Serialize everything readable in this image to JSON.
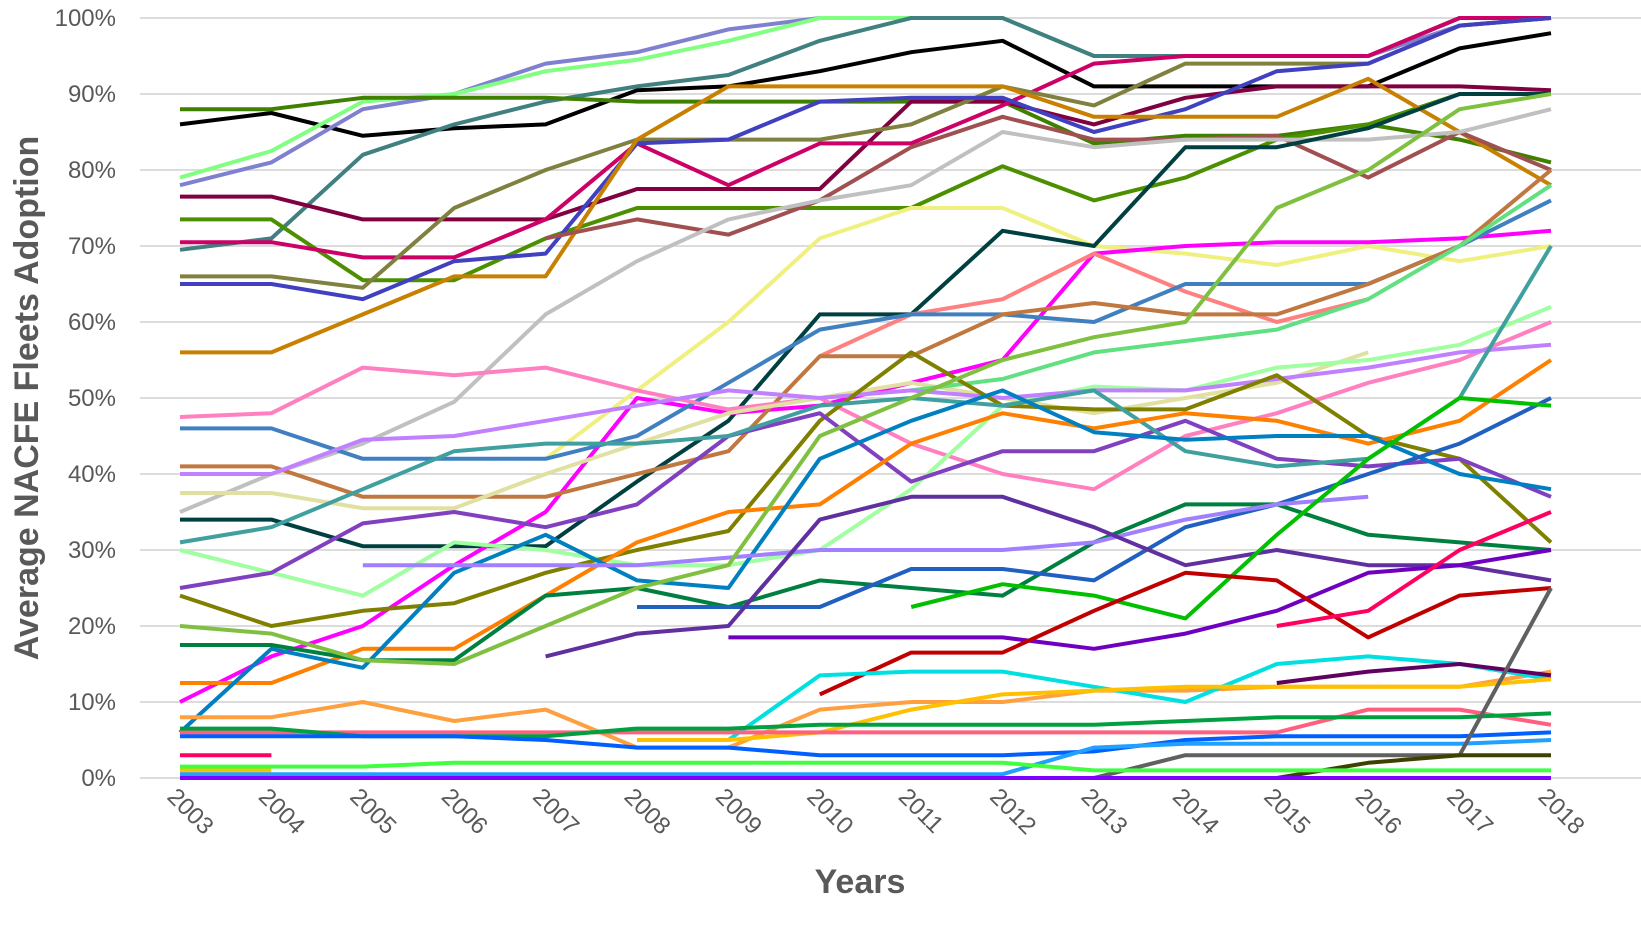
{
  "chart_data": {
    "type": "line",
    "title": "",
    "xlabel": "Years",
    "ylabel": "Average NACFE Fleets Adoption",
    "x": [
      "2003",
      "2004",
      "2005",
      "2006",
      "2007",
      "2008",
      "2009",
      "2010",
      "2011",
      "2012",
      "2013",
      "2014",
      "2015",
      "2016",
      "2017",
      "2018"
    ],
    "ylim": [
      0,
      100
    ],
    "y_ticks": [
      "0%",
      "10%",
      "20%",
      "30%",
      "40%",
      "50%",
      "60%",
      "70%",
      "80%",
      "90%",
      "100%"
    ],
    "grid": true,
    "legend": "none",
    "series": [
      {
        "color": "#000000",
        "values": [
          86,
          87.5,
          84.5,
          85.5,
          86,
          90.5,
          91,
          93,
          95.5,
          97,
          91,
          91,
          91,
          91,
          96,
          98
        ]
      },
      {
        "color": "#8080d0",
        "values": [
          78,
          81,
          88,
          90,
          94,
          95.5,
          98.5,
          100,
          100,
          100,
          95,
          95,
          95,
          95,
          99,
          100
        ]
      },
      {
        "color": "#80ff80",
        "values": [
          79,
          82.5,
          89,
          90,
          93,
          94.5,
          97,
          100,
          100,
          100,
          95,
          95,
          95,
          95,
          100,
          100
        ]
      },
      {
        "color": "#408080",
        "values": [
          69.5,
          71,
          82,
          86,
          89,
          91,
          92.5,
          97,
          100,
          100,
          95,
          95,
          95,
          95,
          100,
          100
        ]
      },
      {
        "color": "#408000",
        "values": [
          88,
          88,
          89.5,
          89.5,
          89.5,
          89,
          89,
          89,
          89,
          89,
          83.5,
          84.5,
          84.5,
          86,
          84,
          81
        ]
      },
      {
        "color": "#800040",
        "values": [
          76.5,
          76.5,
          73.5,
          73.5,
          73.5,
          77.5,
          77.5,
          77.5,
          89,
          89,
          86,
          89.5,
          91,
          91,
          91,
          90.5
        ]
      },
      {
        "color": "#4c9000",
        "values": [
          73.5,
          73.5,
          65.5,
          65.5,
          71,
          75,
          75,
          75,
          75,
          80.5,
          76,
          79,
          84,
          86,
          90,
          90
        ]
      },
      {
        "color": "#cc0066",
        "values": [
          70.5,
          70.5,
          68.5,
          68.5,
          73.5,
          83.5,
          78,
          83.5,
          83.5,
          88.5,
          94,
          95,
          95,
          95,
          100,
          100
        ]
      },
      {
        "color": "#808040",
        "values": [
          66,
          66,
          64.5,
          75,
          80,
          84,
          84,
          84,
          86,
          91,
          88.5,
          94,
          94,
          94,
          99,
          100
        ]
      },
      {
        "color": "#4040c0",
        "values": [
          65,
          65,
          63,
          68,
          69,
          83.5,
          84,
          89,
          89.5,
          89.5,
          85,
          88,
          93,
          94,
          99,
          100
        ]
      },
      {
        "color": "#c88000",
        "values": [
          56,
          56,
          61,
          66,
          66,
          84,
          91,
          91,
          91,
          91,
          87,
          87,
          87,
          92,
          85,
          78
        ]
      },
      {
        "color": "#a05050",
        "values": [
          null,
          null,
          null,
          null,
          71,
          73.5,
          71.5,
          76,
          83,
          87,
          84,
          84,
          84.5,
          79,
          85,
          80
        ]
      },
      {
        "color": "#c0c0c0",
        "values": [
          35,
          40,
          44,
          49.5,
          61,
          68,
          73.5,
          76,
          78,
          85,
          83,
          84,
          84,
          84,
          85,
          88
        ]
      },
      {
        "color": "#f0f080",
        "values": [
          13,
          null,
          null,
          null,
          42,
          51,
          60,
          71,
          75,
          75,
          70,
          69,
          67.5,
          70,
          68,
          70
        ]
      },
      {
        "color": "#004040",
        "values": [
          34,
          34,
          30.5,
          30.5,
          30.5,
          39,
          47,
          61,
          61,
          72,
          70,
          83,
          83,
          85.5,
          90,
          90
        ]
      },
      {
        "color": "#ff00ff",
        "values": [
          10,
          16,
          20,
          28,
          35,
          50,
          48,
          49,
          52,
          55,
          69,
          70,
          70.5,
          70.5,
          71,
          72
        ]
      },
      {
        "color": "#ff8080",
        "values": [
          null,
          null,
          null,
          null,
          null,
          null,
          null,
          55.5,
          61,
          63,
          69,
          64,
          60,
          63,
          null,
          null
        ]
      },
      {
        "color": "#4080c0",
        "values": [
          46,
          46,
          42,
          42,
          42,
          45,
          52,
          59,
          61,
          61,
          60,
          65,
          65,
          65,
          70,
          76
        ]
      },
      {
        "color": "#c07840",
        "values": [
          41,
          41,
          37,
          37,
          37,
          40,
          43,
          55.5,
          55.5,
          61,
          62.5,
          61,
          61,
          65,
          70,
          80
        ]
      },
      {
        "color": "#ff80c0",
        "values": [
          47.5,
          48,
          54,
          53,
          54,
          51,
          48.5,
          50,
          44,
          40,
          38,
          45,
          48,
          52,
          55,
          60
        ]
      },
      {
        "color": "#e0e0a0",
        "values": [
          37.5,
          37.5,
          35.5,
          35.5,
          40,
          44,
          48,
          50,
          52,
          50,
          48,
          50,
          52,
          56,
          null,
          null
        ]
      },
      {
        "color": "#a0ffa0",
        "values": [
          30,
          27,
          24,
          31,
          30,
          28,
          28,
          30,
          38,
          49,
          51.5,
          51,
          54,
          55,
          57,
          62
        ]
      },
      {
        "color": "#60e080",
        "values": [
          null,
          null,
          null,
          null,
          null,
          null,
          null,
          null,
          51,
          52.5,
          56,
          57.5,
          59,
          63,
          70,
          78
        ]
      },
      {
        "color": "#c080ff",
        "values": [
          40,
          40,
          44.5,
          45,
          47,
          49,
          51,
          50,
          51,
          50,
          51,
          51,
          52.5,
          54,
          56,
          57
        ]
      },
      {
        "color": "#808000",
        "values": [
          24,
          20,
          22,
          23,
          27,
          30,
          32.5,
          47,
          56,
          49,
          48.5,
          48.5,
          53,
          45,
          42,
          31
        ]
      },
      {
        "color": "#8040c0",
        "values": [
          25,
          27,
          33.5,
          35,
          33,
          36,
          45,
          48,
          39,
          43,
          43,
          47,
          42,
          41,
          42,
          37
        ]
      },
      {
        "color": "#40a0a0",
        "values": [
          31,
          33,
          38,
          43,
          44,
          44,
          45,
          49,
          50,
          49,
          51,
          43,
          41,
          42,
          50,
          70
        ]
      },
      {
        "color": "#ff8000",
        "values": [
          12.5,
          12.5,
          17,
          17,
          24,
          31,
          35,
          36,
          44,
          48,
          46,
          48,
          47,
          44,
          47,
          55
        ]
      },
      {
        "color": "#0080c0",
        "values": [
          6,
          17,
          14.5,
          27,
          32,
          26,
          25,
          42,
          47,
          51,
          45.5,
          44.5,
          45,
          45,
          40,
          38
        ]
      },
      {
        "color": "#008040",
        "values": [
          17.5,
          17.5,
          15.5,
          15.5,
          24,
          25,
          22.5,
          26,
          25,
          24,
          31,
          36,
          36,
          32,
          31,
          30
        ]
      },
      {
        "color": "#2060c0",
        "values": [
          null,
          null,
          null,
          null,
          null,
          22.5,
          22.5,
          22.5,
          27.5,
          27.5,
          26,
          33,
          36,
          40,
          44,
          50
        ]
      },
      {
        "color": "#a080ff",
        "values": [
          null,
          null,
          28,
          28,
          28,
          28,
          29,
          30,
          30,
          30,
          31,
          34,
          36,
          37,
          null,
          null
        ]
      },
      {
        "color": "#6030a0",
        "values": [
          null,
          null,
          null,
          null,
          16,
          19,
          20,
          34,
          37,
          37,
          33,
          28,
          30,
          28,
          28,
          26
        ]
      },
      {
        "color": "#80c040",
        "values": [
          20,
          19,
          15.5,
          15,
          20,
          25,
          28,
          45,
          50,
          55,
          58,
          60,
          75,
          80,
          88,
          90
        ]
      },
      {
        "color": "#00c000",
        "values": [
          null,
          null,
          null,
          null,
          null,
          null,
          null,
          null,
          22.5,
          25.5,
          24,
          21,
          32,
          42,
          50,
          49
        ]
      },
      {
        "color": "#7000c0",
        "values": [
          null,
          null,
          null,
          null,
          null,
          null,
          18.5,
          18.5,
          18.5,
          18.5,
          17,
          19,
          22,
          27,
          28,
          30
        ]
      },
      {
        "color": "#c00000",
        "values": [
          null,
          null,
          null,
          null,
          null,
          null,
          null,
          11,
          16.5,
          16.5,
          22,
          27,
          26,
          18.5,
          24,
          25
        ]
      },
      {
        "color": "#ff0060",
        "values": [
          3,
          3,
          null,
          null,
          null,
          null,
          null,
          null,
          null,
          null,
          null,
          null,
          20,
          22,
          30,
          35
        ]
      },
      {
        "color": "#ffa040",
        "values": [
          8,
          8,
          10,
          7.5,
          9,
          4,
          4,
          9,
          10,
          10,
          11.5,
          11.5,
          12,
          12,
          12,
          14
        ]
      },
      {
        "color": "#00e0e0",
        "values": [
          null,
          null,
          null,
          null,
          null,
          null,
          5,
          13.5,
          14,
          14,
          12,
          10,
          15,
          16,
          15,
          13
        ]
      },
      {
        "color": "#ffc000",
        "values": [
          1,
          1,
          null,
          null,
          null,
          5,
          5,
          6,
          9,
          11,
          11.5,
          12,
          12,
          12,
          12,
          13
        ]
      },
      {
        "color": "#600060",
        "values": [
          null,
          null,
          null,
          null,
          null,
          null,
          null,
          null,
          null,
          null,
          null,
          null,
          12.5,
          14,
          15,
          13.5
        ]
      },
      {
        "color": "#ff6080",
        "values": [
          6,
          6,
          6,
          6,
          6,
          6,
          6,
          6,
          6,
          6,
          6,
          6,
          6,
          9,
          9,
          7
        ]
      },
      {
        "color": "#00a040",
        "values": [
          6.5,
          6.5,
          5.5,
          5.5,
          5.5,
          6.5,
          6.5,
          7,
          7,
          7,
          7,
          7.5,
          8,
          8,
          8,
          8.5
        ]
      },
      {
        "color": "#0060ff",
        "values": [
          5.5,
          5.5,
          5.5,
          5.5,
          5,
          4,
          4,
          3,
          3,
          3,
          3.5,
          5,
          5.5,
          5.5,
          5.5,
          6
        ]
      },
      {
        "color": "#20a0ff",
        "values": [
          0.5,
          0.5,
          0.5,
          0.5,
          0.5,
          0.5,
          0.5,
          0.5,
          0.5,
          0.5,
          4,
          4.5,
          4.5,
          4.5,
          4.5,
          5
        ]
      },
      {
        "color": "#606060",
        "values": [
          0,
          0,
          0,
          0,
          0,
          0,
          0,
          0,
          0,
          0,
          0,
          3,
          3,
          3,
          3,
          25
        ]
      },
      {
        "color": "#404000",
        "values": [
          0,
          0,
          0,
          0,
          0,
          0,
          0,
          0,
          0,
          0,
          0,
          0,
          0,
          2,
          3,
          3
        ]
      },
      {
        "color": "#8000ff",
        "values": [
          0,
          0,
          0,
          0,
          0,
          0,
          0,
          0,
          0,
          0,
          0,
          0,
          0,
          0,
          0,
          0
        ]
      },
      {
        "color": "#40ff40",
        "values": [
          1.5,
          1.5,
          1.5,
          2,
          2,
          2,
          2,
          2,
          2,
          2,
          1,
          1,
          1,
          1,
          1,
          1
        ]
      }
    ]
  }
}
